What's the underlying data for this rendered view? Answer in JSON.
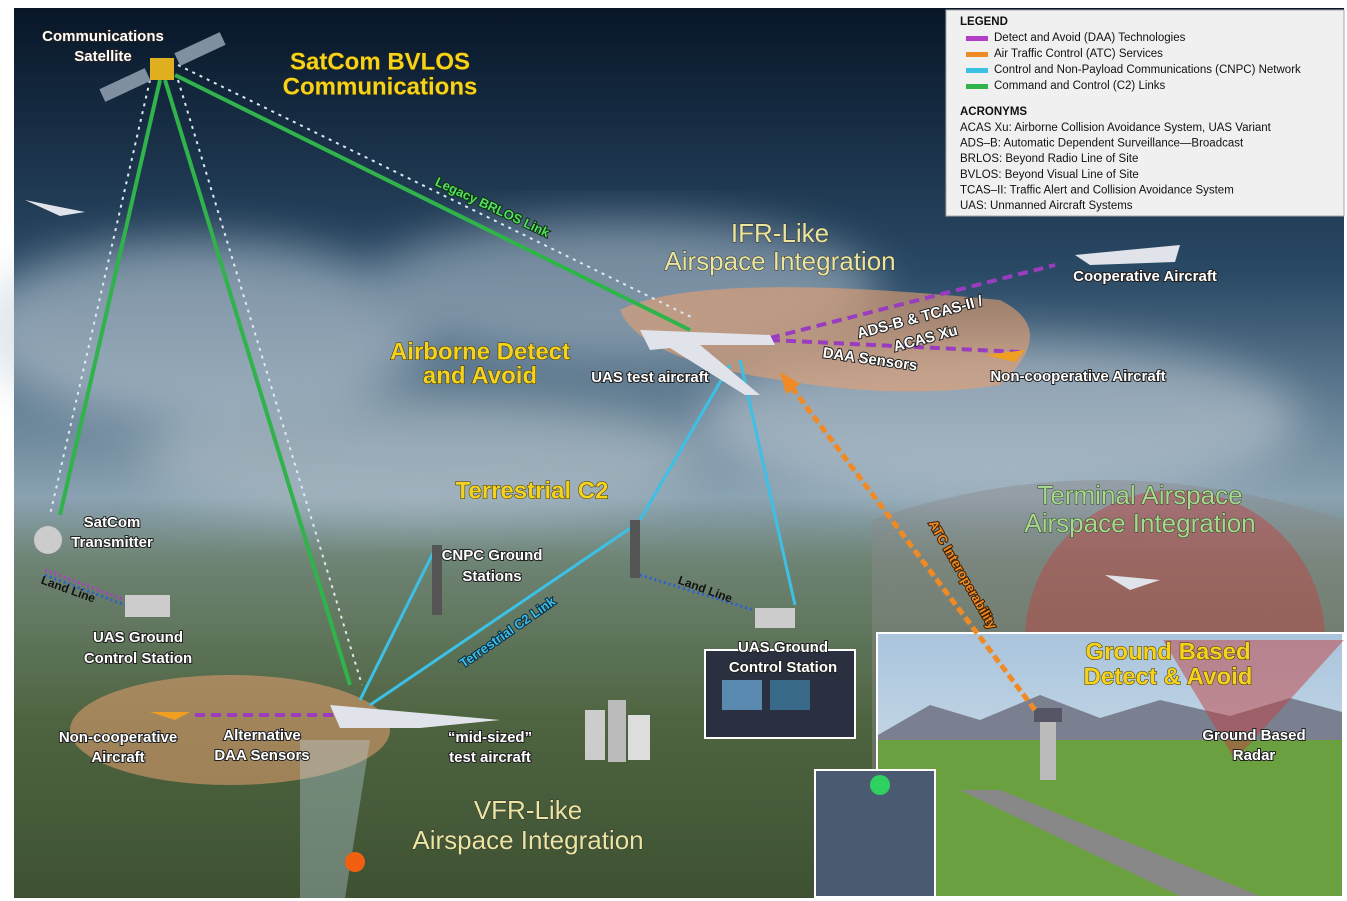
{
  "labels": [
    {
      "lines": [
        "Communications",
        "Satellite"
      ]
    },
    {
      "lines": [
        "SatCom BVLOS",
        "Communications"
      ]
    },
    {
      "lines": [
        "Legacy BRLOS Link"
      ]
    },
    {
      "lines": [
        "IFR-Like",
        "Airspace Integration"
      ]
    },
    {
      "lines": [
        "ADS-B & TCAS-II /",
        "ACAS Xu"
      ]
    },
    {
      "lines": [
        "Cooperative Aircraft"
      ]
    },
    {
      "lines": [
        "DAA Sensors"
      ]
    },
    {
      "lines": [
        "Non-cooperative Aircraft"
      ]
    },
    {
      "lines": [
        "Airborne Detect",
        "and Avoid"
      ]
    },
    {
      "lines": [
        "UAS test aircraft"
      ]
    },
    {
      "lines": [
        "Terrestrial C2"
      ]
    },
    {
      "lines": [
        "SatCom",
        "Transmitter"
      ]
    },
    {
      "lines": [
        "Land Line"
      ]
    },
    {
      "lines": [
        "UAS Ground",
        "Control Station"
      ]
    },
    {
      "lines": [
        "CNPC Ground",
        "Stations"
      ]
    },
    {
      "lines": [
        "Terrestrial C2 Link"
      ]
    },
    {
      "lines": [
        "Land Line"
      ]
    },
    {
      "lines": [
        "UAS Ground",
        "Control Station"
      ]
    },
    {
      "lines": [
        "ATC Interoperability"
      ]
    },
    {
      "lines": [
        "Terminal Airspace",
        "Airspace Integration"
      ]
    },
    {
      "lines": [
        "Ground Based",
        "Detect & Avoid"
      ]
    },
    {
      "lines": [
        "Ground Based",
        "Radar"
      ]
    },
    {
      "lines": [
        "Non-cooperative",
        "Aircraft"
      ]
    },
    {
      "lines": [
        "Alternative",
        "DAA Sensors"
      ]
    },
    {
      "lines": [
        "“mid-sized”",
        "test aircraft"
      ]
    },
    {
      "lines": [
        "VFR-Like",
        "Airspace Integration"
      ]
    }
  ],
  "legend": {
    "title": "LEGEND",
    "items": [
      {
        "label": "Detect and Avoid (DAA) Technologies",
        "color": "#b03cc8"
      },
      {
        "label": "Air Traffic Control (ATC) Services",
        "color": "#f08a24"
      },
      {
        "label": "Control and Non-Payload Communications (CNPC) Network",
        "color": "#3cc0e6"
      },
      {
        "label": "Command and Control (C2) Links",
        "color": "#2fb34a"
      }
    ]
  },
  "acronyms": {
    "title": "ACRONYMS",
    "items": [
      "ACAS Xu: Airborne Collision Avoidance System, UAS Variant",
      "ADS–B: Automatic Dependent Surveillance—Broadcast",
      "BRLOS: Beyond Radio Line of Site",
      "BVLOS: Beyond Visual Line of Site",
      "TCAS–II: Traffic Alert and Collision Avoidance System",
      "UAS: Unmanned Aircraft Systems"
    ]
  }
}
